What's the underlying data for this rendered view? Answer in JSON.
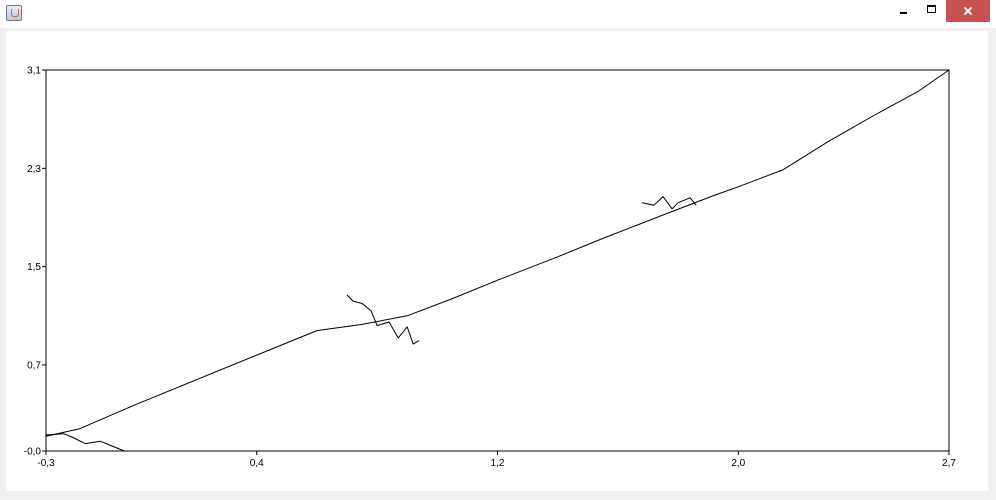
{
  "window": {
    "title": "",
    "icon": "java-cup-icon"
  },
  "chart_data": {
    "type": "line",
    "title": "",
    "xlabel": "",
    "ylabel": "",
    "xlim": [
      -0.3,
      2.7
    ],
    "ylim": [
      0.0,
      3.1
    ],
    "x_ticks": [
      -0.3,
      0.4,
      1.2,
      2.0,
      2.7
    ],
    "x_tick_labels": [
      "-0,3",
      "0,4",
      "1,2",
      "2,0",
      "2,7"
    ],
    "y_ticks": [
      0.0,
      0.7,
      1.5,
      2.3,
      3.1
    ],
    "y_tick_labels": [
      "-0,0",
      "0,7",
      "1,5",
      "2,3",
      "3,1"
    ],
    "grid": false,
    "legend": "none",
    "line_color": "#000000",
    "series": [
      {
        "x": [
          -0.3,
          -0.19,
          0.0,
          0.2,
          0.4,
          0.6,
          0.75,
          0.9,
          1.05,
          1.2,
          1.4,
          1.55,
          1.75,
          1.92,
          2.0,
          2.15,
          2.3,
          2.45,
          2.6,
          2.7
        ],
        "y": [
          0.12,
          0.18,
          0.38,
          0.58,
          0.78,
          0.98,
          1.03,
          1.1,
          1.24,
          1.39,
          1.58,
          1.73,
          1.92,
          2.08,
          2.15,
          2.29,
          2.52,
          2.73,
          2.93,
          3.1
        ]
      },
      {
        "x": [
          -0.3,
          -0.24,
          -0.21,
          -0.17,
          -0.12,
          -0.08,
          -0.06,
          -0.04
        ],
        "y": [
          0.13,
          0.14,
          0.11,
          0.06,
          0.08,
          0.04,
          0.02,
          0.0
        ]
      },
      {
        "x": [
          0.7,
          0.72,
          0.75,
          0.78,
          0.8,
          0.84,
          0.87,
          0.9,
          0.92,
          0.94
        ],
        "y": [
          1.27,
          1.22,
          1.2,
          1.14,
          1.02,
          1.05,
          0.92,
          1.01,
          0.87,
          0.9
        ]
      },
      {
        "x": [
          1.68,
          1.72,
          1.75,
          1.78,
          1.8,
          1.84,
          1.86
        ],
        "y": [
          2.02,
          2.0,
          2.07,
          1.97,
          2.02,
          2.06,
          2.0
        ]
      }
    ]
  }
}
